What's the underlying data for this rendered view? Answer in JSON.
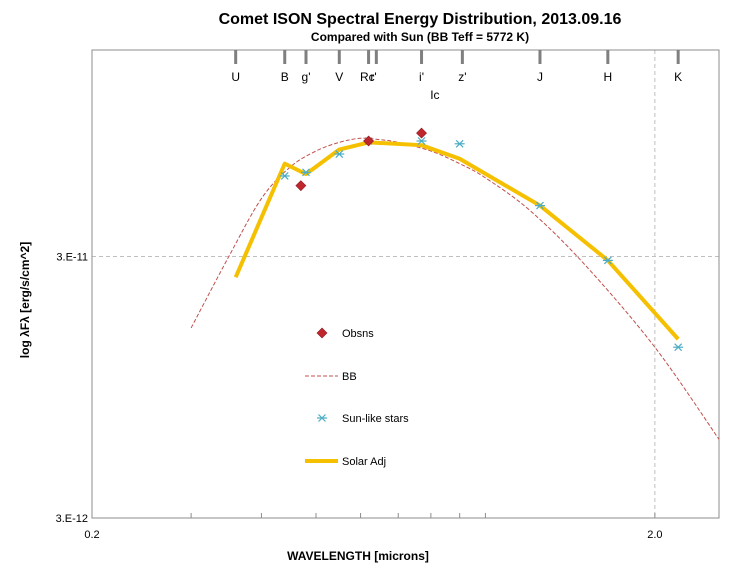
{
  "chart_data": {
    "type": "scatter",
    "title": "Comet ISON Spectral Energy Distribution, 2013.09.16",
    "subtitle": "Compared with Sun (BB Teff = 5772 K)",
    "xlabel": "WAVELENGTH [microns]",
    "ylabel": "log λFλ [erg/s/cm^2]",
    "x_scale": "log",
    "y_scale": "log",
    "xlim": [
      0.2,
      2.6
    ],
    "ylim": [
      3e-12,
      1.85e-10
    ],
    "x_tick_labels": [
      {
        "value": 0.2,
        "label": "0.2"
      },
      {
        "value": 2.0,
        "label": "2.0"
      }
    ],
    "y_tick_labels": [
      {
        "value": 3e-12,
        "label": "3.E-12"
      },
      {
        "value": 3e-11,
        "label": "3.E-11"
      }
    ],
    "gridlines": {
      "x": [
        2.0
      ],
      "y": [
        3e-11
      ]
    },
    "bands": [
      {
        "name": "U",
        "wavelength": 0.36
      },
      {
        "name": "B",
        "wavelength": 0.44
      },
      {
        "name": "g'",
        "wavelength": 0.48
      },
      {
        "name": "V",
        "wavelength": 0.55
      },
      {
        "name": "Rc",
        "wavelength": 0.64
      },
      {
        "name": "r'",
        "wavelength": 0.62
      },
      {
        "name": "i'",
        "wavelength": 0.77
      },
      {
        "name": "Ic",
        "wavelength": 0.8
      },
      {
        "name": "z'",
        "wavelength": 0.91
      },
      {
        "name": "J",
        "wavelength": 1.25
      },
      {
        "name": "H",
        "wavelength": 1.65
      },
      {
        "name": "K",
        "wavelength": 2.2
      }
    ],
    "legend": {
      "placement": "center-left"
    },
    "series": [
      {
        "name": "Obsns",
        "style": "diamond",
        "color": "#c0272d",
        "x": [
          0.47,
          0.62,
          0.77
        ],
        "y": [
          5.6e-11,
          8.3e-11,
          8.9e-11
        ]
      },
      {
        "name": "BB",
        "style": "dashed",
        "color": "#c0504d",
        "x": [
          0.3,
          0.35,
          0.4,
          0.45,
          0.5,
          0.55,
          0.6,
          0.65,
          0.7,
          0.8,
          0.9,
          1.0,
          1.2,
          1.5,
          2.0,
          2.6
        ],
        "y": [
          1.6e-11,
          3e-11,
          5e-11,
          6.6e-11,
          7.6e-11,
          8.2e-11,
          8.5e-11,
          8.4e-11,
          8.2e-11,
          7.6e-11,
          6.8e-11,
          6e-11,
          4.5e-11,
          2.8e-11,
          1.35e-11,
          6e-12
        ]
      },
      {
        "name": "Sun-like stars",
        "style": "asterisk",
        "color": "#4bacc6",
        "x": [
          0.44,
          0.48,
          0.55,
          0.62,
          0.77,
          0.9,
          1.25,
          1.65,
          2.2
        ],
        "y": [
          6.1e-11,
          6.3e-11,
          7.4e-11,
          8.3e-11,
          8.3e-11,
          8.1e-11,
          4.7e-11,
          2.9e-11,
          1.35e-11
        ]
      },
      {
        "name": "Solar Adj",
        "style": "line",
        "color": "#f5c000",
        "x": [
          0.36,
          0.44,
          0.48,
          0.55,
          0.62,
          0.77,
          0.9,
          1.25,
          1.65,
          2.2
        ],
        "y": [
          2.5e-11,
          6.8e-11,
          6.2e-11,
          7.7e-11,
          8.2e-11,
          8e-11,
          7.1e-11,
          4.7e-11,
          2.9e-11,
          1.45e-11
        ]
      }
    ]
  }
}
